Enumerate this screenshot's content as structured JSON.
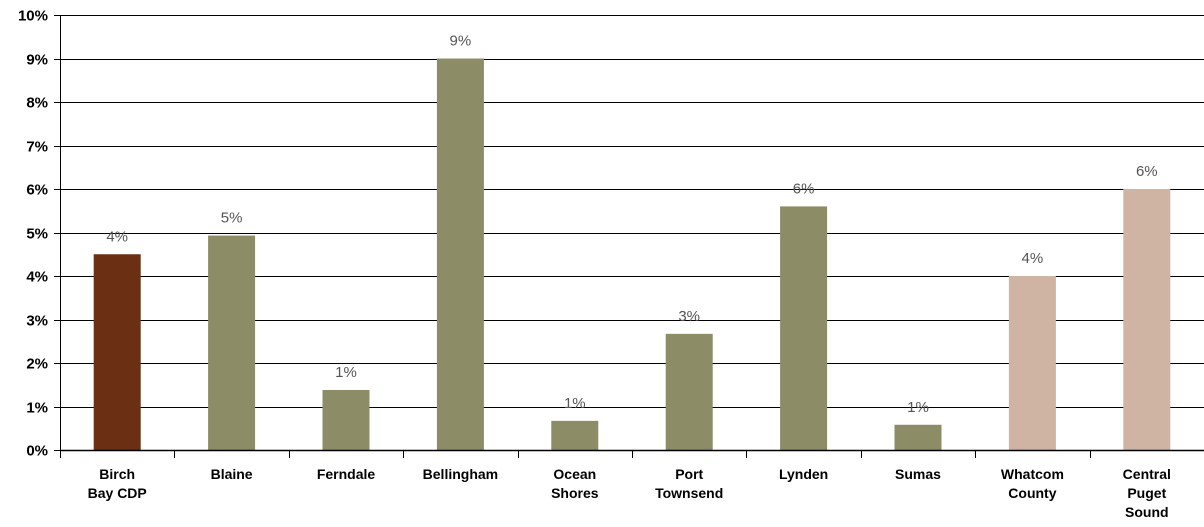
{
  "chart_data": {
    "type": "bar",
    "categories": [
      "Birch Bay CDP",
      "Blaine",
      "Ferndale",
      "Bellingham",
      "Ocean Shores",
      "Port Townsend",
      "Lynden",
      "Sumas",
      "Whatcom County",
      "Central Puget Sound"
    ],
    "category_lines": [
      [
        "Birch",
        "Bay CDP"
      ],
      [
        "Blaine"
      ],
      [
        "Ferndale"
      ],
      [
        "Bellingham"
      ],
      [
        "Ocean",
        "Shores"
      ],
      [
        "Port",
        "Townsend"
      ],
      [
        "Lynden"
      ],
      [
        "Sumas"
      ],
      [
        "Whatcom",
        "County"
      ],
      [
        "Central",
        "Puget",
        "Sound"
      ]
    ],
    "values": [
      4.5,
      4.93,
      1.38,
      9.0,
      0.67,
      2.67,
      5.6,
      0.58,
      4.0,
      6.0
    ],
    "data_labels": [
      "4%",
      "5%",
      "1%",
      "9%",
      "1%",
      "3%",
      "6%",
      "1%",
      "4%",
      "6%"
    ],
    "colors": [
      "#6b2f14",
      "#8c8c66",
      "#8c8c66",
      "#8c8c66",
      "#8c8c66",
      "#8c8c66",
      "#8c8c66",
      "#8c8c66",
      "#cfb3a3",
      "#cfb3a3"
    ],
    "ylim": [
      0,
      10
    ],
    "yticks": [
      0,
      1,
      2,
      3,
      4,
      5,
      6,
      7,
      8,
      9,
      10
    ],
    "ytick_labels": [
      "0%",
      "1%",
      "2%",
      "3%",
      "4%",
      "5%",
      "6%",
      "7%",
      "8%",
      "9%",
      "10%"
    ],
    "grid": true,
    "title": "",
    "xlabel": "",
    "ylabel": ""
  }
}
